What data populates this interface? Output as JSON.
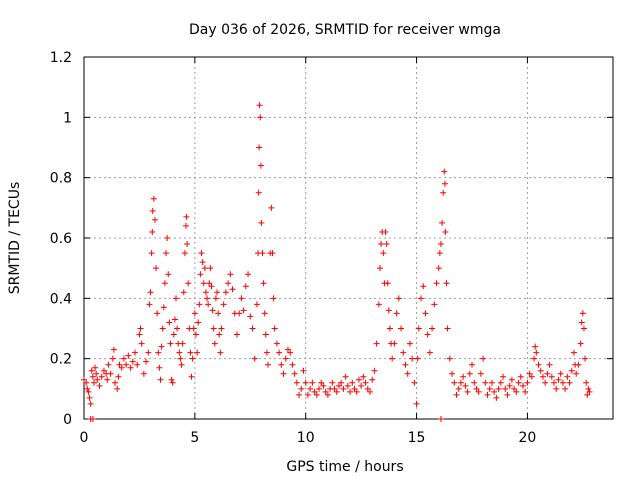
{
  "chart_data": {
    "type": "scatter",
    "title": "Day 036 of 2026, SRMTID for receiver wmga",
    "xlabel": "GPS time / hours",
    "ylabel": "SRMTID / TECUs",
    "xlim": [
      0,
      23.86
    ],
    "ylim": [
      0,
      1.2
    ],
    "xticks": [
      0,
      5,
      10,
      15,
      20
    ],
    "xtick_labels": [
      "0",
      "5",
      "10",
      "15",
      "20"
    ],
    "yticks": [
      0,
      0.2,
      0.4,
      0.6,
      0.8,
      1.0,
      1.2
    ],
    "ytick_labels": [
      "0",
      "0.2",
      "0.4",
      "0.6",
      "0.8",
      "1",
      "1.2"
    ],
    "grid": true,
    "marker": "plus",
    "color": "#ff0000",
    "series": [
      {
        "name": "SRMTID",
        "points": [
          [
            0.0,
            0.13
          ],
          [
            0.1,
            0.12
          ],
          [
            0.15,
            0.1
          ],
          [
            0.2,
            0.09
          ],
          [
            0.25,
            0.07
          ],
          [
            0.3,
            0.05
          ],
          [
            0.35,
            0.16
          ],
          [
            0.4,
            0.14
          ],
          [
            0.45,
            0.12
          ],
          [
            0.5,
            0.17
          ],
          [
            0.55,
            0.15
          ],
          [
            0.6,
            0.13
          ],
          [
            0.7,
            0.11
          ],
          [
            0.8,
            0.14
          ],
          [
            0.9,
            0.16
          ],
          [
            1.0,
            0.15
          ],
          [
            1.05,
            0.13
          ],
          [
            1.1,
            0.18
          ],
          [
            1.2,
            0.15
          ],
          [
            1.3,
            0.2
          ],
          [
            1.35,
            0.23
          ],
          [
            1.4,
            0.12
          ],
          [
            1.5,
            0.1
          ],
          [
            1.55,
            0.14
          ],
          [
            1.6,
            0.18
          ],
          [
            1.7,
            0.17
          ],
          [
            1.8,
            0.2
          ],
          [
            1.9,
            0.18
          ],
          [
            2.0,
            0.21
          ],
          [
            2.1,
            0.17
          ],
          [
            2.2,
            0.19
          ],
          [
            2.3,
            0.22
          ],
          [
            2.4,
            0.18
          ],
          [
            2.5,
            0.28
          ],
          [
            2.55,
            0.3
          ],
          [
            2.6,
            0.25
          ],
          [
            2.7,
            0.15
          ],
          [
            2.8,
            0.19
          ],
          [
            2.9,
            0.22
          ],
          [
            2.95,
            0.38
          ],
          [
            3.0,
            0.42
          ],
          [
            3.05,
            0.55
          ],
          [
            3.08,
            0.62
          ],
          [
            3.1,
            0.69
          ],
          [
            3.15,
            0.73
          ],
          [
            3.2,
            0.66
          ],
          [
            3.25,
            0.5
          ],
          [
            3.3,
            0.35
          ],
          [
            3.35,
            0.22
          ],
          [
            3.4,
            0.17
          ],
          [
            3.45,
            0.13
          ],
          [
            3.5,
            0.24
          ],
          [
            3.55,
            0.3
          ],
          [
            3.6,
            0.37
          ],
          [
            3.65,
            0.45
          ],
          [
            3.7,
            0.55
          ],
          [
            3.75,
            0.6
          ],
          [
            3.8,
            0.48
          ],
          [
            3.85,
            0.32
          ],
          [
            3.9,
            0.25
          ],
          [
            3.95,
            0.13
          ],
          [
            4.0,
            0.12
          ],
          [
            4.05,
            0.28
          ],
          [
            4.1,
            0.33
          ],
          [
            4.15,
            0.4
          ],
          [
            4.2,
            0.3
          ],
          [
            4.25,
            0.25
          ],
          [
            4.3,
            0.22
          ],
          [
            4.35,
            0.2
          ],
          [
            4.4,
            0.18
          ],
          [
            4.45,
            0.25
          ],
          [
            4.5,
            0.42
          ],
          [
            4.55,
            0.55
          ],
          [
            4.6,
            0.64
          ],
          [
            4.62,
            0.67
          ],
          [
            4.65,
            0.58
          ],
          [
            4.7,
            0.45
          ],
          [
            4.75,
            0.3
          ],
          [
            4.8,
            0.22
          ],
          [
            4.85,
            0.14
          ],
          [
            4.9,
            0.2
          ],
          [
            4.95,
            0.3
          ],
          [
            5.0,
            0.35
          ],
          [
            5.05,
            0.28
          ],
          [
            5.1,
            0.22
          ],
          [
            5.15,
            0.32
          ],
          [
            5.2,
            0.38
          ],
          [
            5.25,
            0.48
          ],
          [
            5.3,
            0.55
          ],
          [
            5.35,
            0.52
          ],
          [
            5.4,
            0.45
          ],
          [
            5.45,
            0.5
          ],
          [
            5.5,
            0.42
          ],
          [
            5.55,
            0.4
          ],
          [
            5.6,
            0.38
          ],
          [
            5.65,
            0.45
          ],
          [
            5.7,
            0.5
          ],
          [
            5.75,
            0.44
          ],
          [
            5.8,
            0.36
          ],
          [
            5.85,
            0.3
          ],
          [
            5.9,
            0.25
          ],
          [
            5.95,
            0.4
          ],
          [
            6.0,
            0.42
          ],
          [
            6.05,
            0.35
          ],
          [
            6.1,
            0.28
          ],
          [
            6.15,
            0.22
          ],
          [
            6.2,
            0.3
          ],
          [
            6.3,
            0.38
          ],
          [
            6.4,
            0.42
          ],
          [
            6.5,
            0.45
          ],
          [
            6.6,
            0.48
          ],
          [
            6.7,
            0.43
          ],
          [
            6.8,
            0.35
          ],
          [
            6.9,
            0.28
          ],
          [
            7.0,
            0.35
          ],
          [
            7.1,
            0.4
          ],
          [
            7.2,
            0.36
          ],
          [
            7.3,
            0.44
          ],
          [
            7.4,
            0.48
          ],
          [
            7.5,
            0.34
          ],
          [
            7.6,
            0.3
          ],
          [
            7.7,
            0.2
          ],
          [
            7.8,
            0.38
          ],
          [
            7.85,
            0.55
          ],
          [
            7.88,
            0.75
          ],
          [
            7.9,
            0.9
          ],
          [
            7.92,
            1.04
          ],
          [
            7.95,
            1.0
          ],
          [
            7.98,
            0.84
          ],
          [
            8.0,
            0.65
          ],
          [
            8.05,
            0.55
          ],
          [
            8.1,
            0.45
          ],
          [
            8.15,
            0.35
          ],
          [
            8.2,
            0.28
          ],
          [
            8.25,
            0.22
          ],
          [
            8.3,
            0.18
          ],
          [
            8.4,
            0.55
          ],
          [
            8.45,
            0.7
          ],
          [
            8.5,
            0.55
          ],
          [
            8.55,
            0.4
          ],
          [
            8.6,
            0.3
          ],
          [
            8.7,
            0.25
          ],
          [
            8.8,
            0.22
          ],
          [
            8.9,
            0.18
          ],
          [
            9.0,
            0.15
          ],
          [
            9.1,
            0.2
          ],
          [
            9.2,
            0.23
          ],
          [
            9.3,
            0.22
          ],
          [
            9.4,
            0.18
          ],
          [
            9.5,
            0.15
          ],
          [
            9.6,
            0.12
          ],
          [
            9.7,
            0.08
          ],
          [
            9.8,
            0.1
          ],
          [
            9.9,
            0.16
          ],
          [
            10.0,
            0.12
          ],
          [
            10.1,
            0.08
          ],
          [
            10.2,
            0.1
          ],
          [
            10.3,
            0.12
          ],
          [
            10.4,
            0.09
          ],
          [
            10.5,
            0.08
          ],
          [
            10.6,
            0.1
          ],
          [
            10.7,
            0.12
          ],
          [
            10.8,
            0.11
          ],
          [
            10.9,
            0.09
          ],
          [
            11.0,
            0.08
          ],
          [
            11.1,
            0.1
          ],
          [
            11.2,
            0.12
          ],
          [
            11.3,
            0.1
          ],
          [
            11.4,
            0.09
          ],
          [
            11.5,
            0.11
          ],
          [
            11.6,
            0.12
          ],
          [
            11.7,
            0.1
          ],
          [
            11.8,
            0.14
          ],
          [
            11.9,
            0.11
          ],
          [
            12.0,
            0.09
          ],
          [
            12.1,
            0.12
          ],
          [
            12.2,
            0.1
          ],
          [
            12.3,
            0.09
          ],
          [
            12.4,
            0.13
          ],
          [
            12.5,
            0.11
          ],
          [
            12.6,
            0.14
          ],
          [
            12.7,
            0.12
          ],
          [
            12.8,
            0.1
          ],
          [
            12.9,
            0.09
          ],
          [
            13.0,
            0.13
          ],
          [
            13.1,
            0.16
          ],
          [
            13.2,
            0.25
          ],
          [
            13.3,
            0.38
          ],
          [
            13.35,
            0.5
          ],
          [
            13.4,
            0.58
          ],
          [
            13.45,
            0.62
          ],
          [
            13.5,
            0.55
          ],
          [
            13.55,
            0.45
          ],
          [
            13.6,
            0.62
          ],
          [
            13.65,
            0.58
          ],
          [
            13.7,
            0.45
          ],
          [
            13.75,
            0.36
          ],
          [
            13.8,
            0.3
          ],
          [
            13.85,
            0.25
          ],
          [
            13.9,
            0.2
          ],
          [
            14.0,
            0.25
          ],
          [
            14.1,
            0.35
          ],
          [
            14.2,
            0.4
          ],
          [
            14.3,
            0.3
          ],
          [
            14.4,
            0.22
          ],
          [
            14.5,
            0.18
          ],
          [
            14.6,
            0.15
          ],
          [
            14.7,
            0.25
          ],
          [
            14.8,
            0.2
          ],
          [
            14.9,
            0.12
          ],
          [
            15.0,
            0.05
          ],
          [
            15.05,
            0.2
          ],
          [
            15.1,
            0.3
          ],
          [
            15.2,
            0.4
          ],
          [
            15.3,
            0.44
          ],
          [
            15.4,
            0.35
          ],
          [
            15.5,
            0.28
          ],
          [
            15.6,
            0.22
          ],
          [
            15.7,
            0.3
          ],
          [
            15.8,
            0.38
          ],
          [
            15.9,
            0.45
          ],
          [
            16.0,
            0.5
          ],
          [
            16.05,
            0.55
          ],
          [
            16.1,
            0.58
          ],
          [
            16.15,
            0.65
          ],
          [
            16.2,
            0.75
          ],
          [
            16.25,
            0.82
          ],
          [
            16.28,
            0.78
          ],
          [
            16.3,
            0.62
          ],
          [
            16.35,
            0.45
          ],
          [
            16.4,
            0.3
          ],
          [
            16.5,
            0.2
          ],
          [
            16.6,
            0.15
          ],
          [
            16.7,
            0.12
          ],
          [
            16.8,
            0.08
          ],
          [
            16.9,
            0.1
          ],
          [
            17.0,
            0.12
          ],
          [
            17.1,
            0.14
          ],
          [
            17.2,
            0.11
          ],
          [
            17.3,
            0.09
          ],
          [
            17.4,
            0.15
          ],
          [
            17.5,
            0.18
          ],
          [
            17.6,
            0.12
          ],
          [
            17.7,
            0.1
          ],
          [
            17.8,
            0.09
          ],
          [
            17.9,
            0.15
          ],
          [
            18.0,
            0.2
          ],
          [
            18.1,
            0.12
          ],
          [
            18.2,
            0.08
          ],
          [
            18.3,
            0.1
          ],
          [
            18.4,
            0.12
          ],
          [
            18.5,
            0.09
          ],
          [
            18.6,
            0.07
          ],
          [
            18.7,
            0.1
          ],
          [
            18.8,
            0.12
          ],
          [
            18.9,
            0.14
          ],
          [
            19.0,
            0.1
          ],
          [
            19.1,
            0.08
          ],
          [
            19.2,
            0.11
          ],
          [
            19.3,
            0.13
          ],
          [
            19.4,
            0.1
          ],
          [
            19.5,
            0.09
          ],
          [
            19.6,
            0.12
          ],
          [
            19.7,
            0.14
          ],
          [
            19.8,
            0.11
          ],
          [
            19.9,
            0.09
          ],
          [
            20.0,
            0.12
          ],
          [
            20.1,
            0.15
          ],
          [
            20.2,
            0.14
          ],
          [
            20.3,
            0.2
          ],
          [
            20.35,
            0.24
          ],
          [
            20.4,
            0.22
          ],
          [
            20.5,
            0.18
          ],
          [
            20.6,
            0.16
          ],
          [
            20.7,
            0.14
          ],
          [
            20.8,
            0.12
          ],
          [
            20.9,
            0.15
          ],
          [
            21.0,
            0.18
          ],
          [
            21.1,
            0.14
          ],
          [
            21.2,
            0.12
          ],
          [
            21.3,
            0.1
          ],
          [
            21.4,
            0.13
          ],
          [
            21.5,
            0.15
          ],
          [
            21.6,
            0.12
          ],
          [
            21.7,
            0.1
          ],
          [
            21.8,
            0.14
          ],
          [
            21.9,
            0.12
          ],
          [
            22.0,
            0.16
          ],
          [
            22.1,
            0.22
          ],
          [
            22.15,
            0.18
          ],
          [
            22.2,
            0.15
          ],
          [
            22.3,
            0.18
          ],
          [
            22.4,
            0.25
          ],
          [
            22.45,
            0.32
          ],
          [
            22.5,
            0.35
          ],
          [
            22.55,
            0.3
          ],
          [
            22.6,
            0.2
          ],
          [
            22.65,
            0.12
          ],
          [
            22.7,
            0.08
          ],
          [
            22.75,
            0.1
          ],
          [
            22.8,
            0.09
          ],
          [
            0.3,
            0.0
          ],
          [
            0.4,
            0.0
          ],
          [
            16.1,
            0.0
          ]
        ]
      }
    ]
  }
}
